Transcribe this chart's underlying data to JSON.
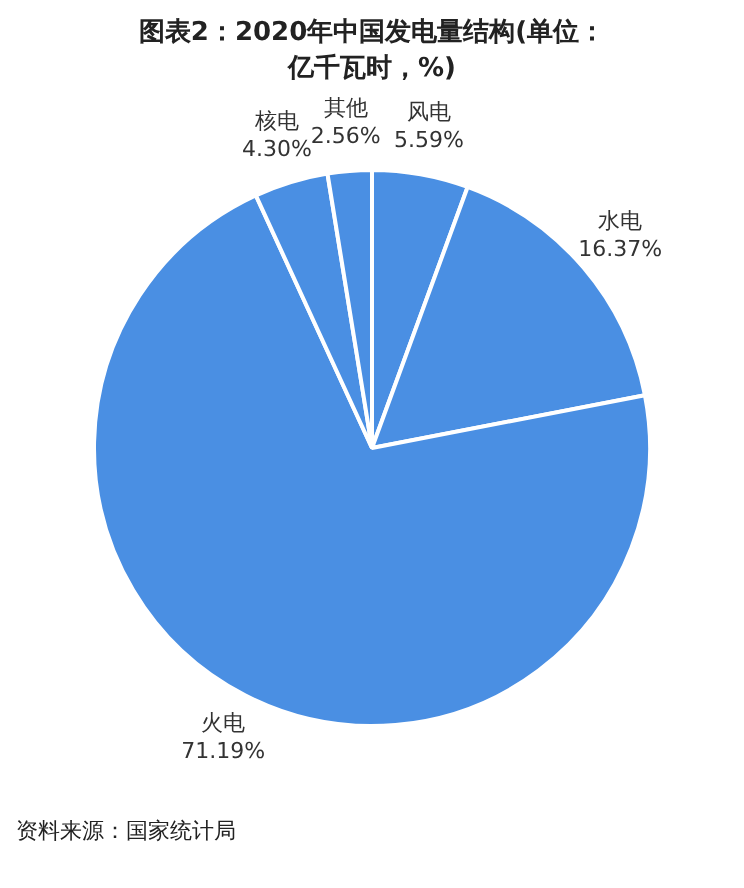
{
  "chart_data": {
    "type": "pie",
    "title": "图表2：2020年中国发电量结构(单位：亿千瓦时，%)",
    "categories": [
      "风电",
      "水电",
      "火电",
      "核电",
      "其他"
    ],
    "values": [
      5.59,
      16.37,
      71.19,
      4.3,
      2.56
    ],
    "value_labels": [
      "5.59%",
      "16.37%",
      "71.19%",
      "4.30%",
      "2.56%"
    ],
    "colors": [
      "#4a8fe3",
      "#4a8fe3",
      "#4a8fe3",
      "#4a8fe3",
      "#4a8fe3"
    ],
    "legend": false,
    "annotations": [
      "资料来源：国家统计局"
    ]
  }
}
